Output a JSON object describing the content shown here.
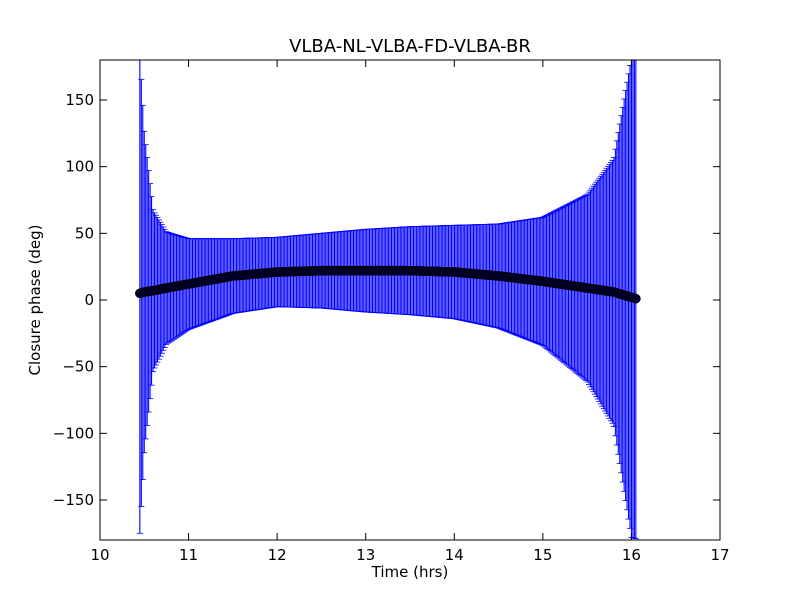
{
  "chart_data": {
    "type": "scatter",
    "title": "VLBA-NL-VLBA-FD-VLBA-BR",
    "xlabel": "Time (hrs)",
    "ylabel": "Closure phase (deg)",
    "xlim": [
      10,
      17
    ],
    "ylim": [
      -180,
      180
    ],
    "xticks": [
      10,
      11,
      12,
      13,
      14,
      15,
      16,
      17
    ],
    "yticks": [
      -150,
      -100,
      -50,
      0,
      50,
      100,
      150
    ],
    "xtick_labels": [
      "10",
      "11",
      "12",
      "13",
      "14",
      "15",
      "16",
      "17"
    ],
    "ytick_labels": [
      "−150",
      "−100",
      "−50",
      "0",
      "50",
      "100",
      "150"
    ],
    "grid": false,
    "colors": {
      "points": "#000033",
      "errorbars": "#0000ff"
    },
    "series": [
      {
        "x": [
          10.45,
          10.5,
          10.6,
          10.75,
          11.0,
          11.5,
          12.0,
          12.5,
          13.0,
          13.5,
          14.0,
          14.5,
          15.0,
          15.5,
          15.8,
          15.95,
          16.0,
          16.05
        ],
        "y": [
          5,
          6,
          7,
          9,
          12,
          18,
          21,
          22,
          22,
          22,
          21,
          18,
          14,
          9,
          6,
          3,
          2,
          1
        ],
        "yerr": [
          180,
          120,
          60,
          42,
          34,
          28,
          26,
          28,
          31,
          33,
          35,
          39,
          48,
          70,
          100,
          160,
          180,
          180
        ]
      }
    ]
  }
}
